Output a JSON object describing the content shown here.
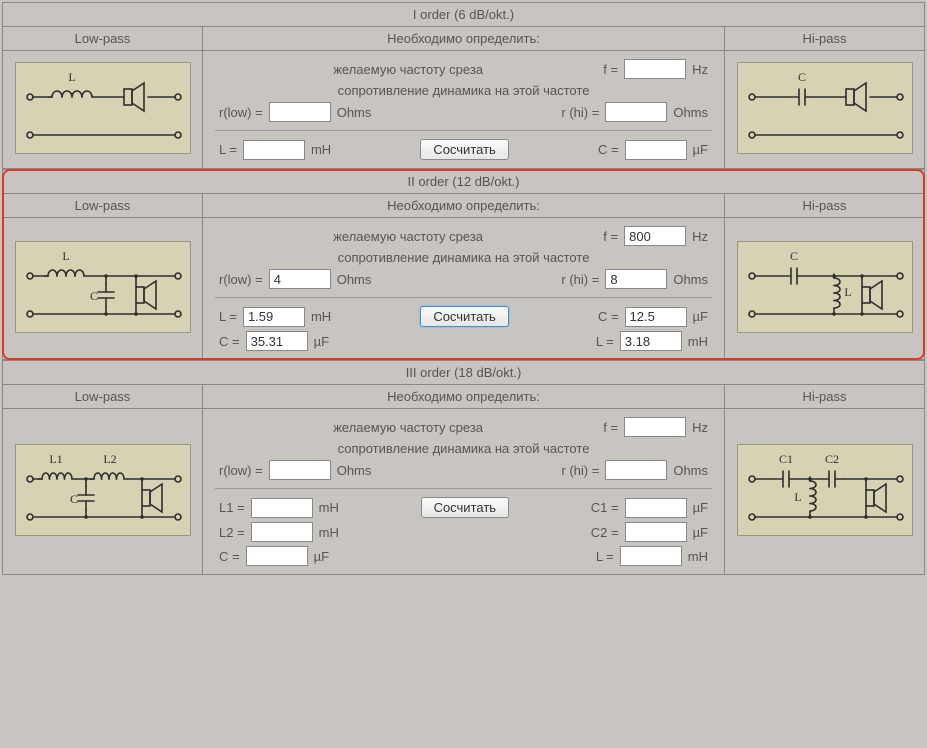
{
  "colors": {
    "page_bg": "#c8c4c0",
    "cell_border": "#888888",
    "circuit_bg": "#d7d2b4",
    "circuit_border": "#9a9780",
    "stroke": "#2e2e2e",
    "highlight": "#d93a2b",
    "button_hl_border": "#3f8ecf"
  },
  "labels": {
    "low_pass": "Low-pass",
    "hi_pass": "Hi-pass",
    "need_to_define": "Необходимо определить:",
    "desired_freq": "желаемую частоту среза",
    "impedance_line": "сопротивление динамика на этой частоте",
    "f": "f =",
    "hz": "Hz",
    "r_low": "r(low) =",
    "r_hi": "r (hi) =",
    "ohms": "Ohms",
    "mH": "mH",
    "uF": "µF",
    "calc_button": "Сосчитать"
  },
  "sections": [
    {
      "key": "order1",
      "title": "I order (6 dB/okt.)",
      "highlighted": false,
      "inputs": {
        "f": "",
        "r_low": "",
        "r_hi": ""
      },
      "outputs_left": [
        {
          "name": "L",
          "unit": "mH",
          "value": ""
        }
      ],
      "outputs_right": [
        {
          "name": "C",
          "unit": "µF",
          "value": ""
        }
      ],
      "circuit_left": {
        "type": "order1-lp",
        "labels": {
          "L": "L"
        }
      },
      "circuit_right": {
        "type": "order1-hp",
        "labels": {
          "C": "C"
        }
      }
    },
    {
      "key": "order2",
      "title": "II order (12 dB/okt.)",
      "highlighted": true,
      "inputs": {
        "f": "800",
        "r_low": "4",
        "r_hi": "8"
      },
      "outputs_left": [
        {
          "name": "L",
          "unit": "mH",
          "value": "1.59"
        },
        {
          "name": "C",
          "unit": "µF",
          "value": "35.31"
        }
      ],
      "outputs_right": [
        {
          "name": "C",
          "unit": "µF",
          "value": "12.5"
        },
        {
          "name": "L",
          "unit": "mH",
          "value": "3.18"
        }
      ],
      "circuit_left": {
        "type": "order2-lp",
        "labels": {
          "L": "L",
          "C": "C"
        }
      },
      "circuit_right": {
        "type": "order2-hp",
        "labels": {
          "C": "C",
          "L": "L"
        }
      }
    },
    {
      "key": "order3",
      "title": "III order (18 dB/okt.)",
      "highlighted": false,
      "inputs": {
        "f": "",
        "r_low": "",
        "r_hi": ""
      },
      "outputs_left": [
        {
          "name": "L1",
          "unit": "mH",
          "value": ""
        },
        {
          "name": "L2",
          "unit": "mH",
          "value": ""
        },
        {
          "name": "C",
          "unit": "µF",
          "value": ""
        }
      ],
      "outputs_right": [
        {
          "name": "C1",
          "unit": "µF",
          "value": ""
        },
        {
          "name": "C2",
          "unit": "µF",
          "value": ""
        },
        {
          "name": "L",
          "unit": "mH",
          "value": ""
        }
      ],
      "circuit_left": {
        "type": "order3-lp",
        "labels": {
          "L1": "L1",
          "L2": "L2",
          "C": "C"
        }
      },
      "circuit_right": {
        "type": "order3-hp",
        "labels": {
          "C1": "C1",
          "C2": "C2",
          "L": "L"
        }
      }
    }
  ]
}
